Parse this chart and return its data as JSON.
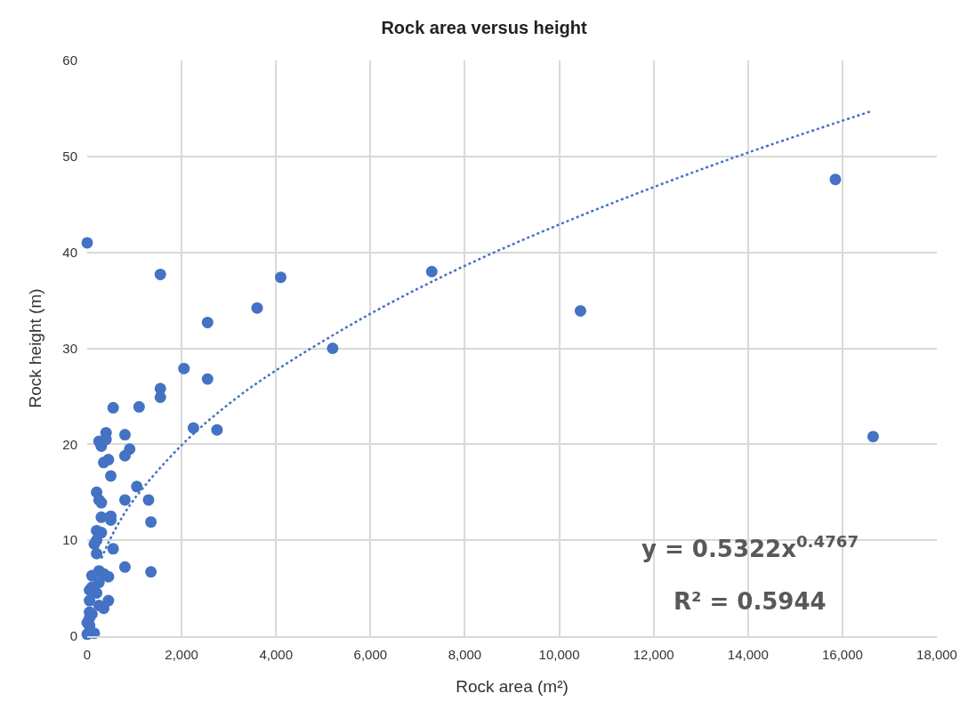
{
  "chart_data": {
    "type": "scatter",
    "title": "Rock area versus height",
    "xlabel": "Rock area (m²)",
    "ylabel": "Rock height (m)",
    "xlim": [
      0,
      18000
    ],
    "ylim": [
      0,
      60
    ],
    "xticks": [
      0,
      {
        "value": 2000,
        "label": "2,000"
      },
      {
        "value": 4000,
        "label": "4,000"
      },
      {
        "value": 6000,
        "label": "6,000"
      },
      {
        "value": 8000,
        "label": "8,000"
      },
      {
        "value": 10000,
        "label": "10,000"
      },
      {
        "value": 12000,
        "label": "12,000"
      },
      {
        "value": 14000,
        "label": "14,000"
      },
      {
        "value": 16000,
        "label": "16,000"
      },
      {
        "value": 18000,
        "label": "18,000"
      }
    ],
    "yticks": [
      0,
      10,
      20,
      30,
      40,
      50,
      60
    ],
    "grid": true,
    "marker": "circle",
    "annotations": [
      "y = 0.5322x$^{0.4767}$",
      "R² = 0.5944"
    ],
    "series": [
      {
        "color": "#4472c4",
        "x": [
          0,
          1550,
          3600,
          4100,
          2550,
          7300,
          10450,
          15850,
          16650,
          5200,
          2050,
          2550,
          1550,
          1550,
          550,
          1100,
          2250,
          2750,
          400,
          800,
          250,
          400,
          300,
          900,
          800,
          450,
          350,
          500,
          1050,
          200,
          250,
          300,
          800,
          1300,
          1350,
          300,
          500,
          500,
          200,
          300,
          200,
          150,
          200,
          550,
          800,
          1350,
          100,
          250,
          350,
          450,
          250,
          50,
          200,
          50,
          450,
          350,
          50,
          50,
          50,
          150,
          0,
          100,
          250,
          0,
          100
        ],
        "values": [
          41.0,
          37.7,
          34.2,
          37.4,
          32.7,
          38.0,
          33.9,
          47.6,
          20.8,
          30.0,
          27.9,
          26.8,
          25.8,
          24.9,
          23.8,
          23.9,
          21.7,
          21.5,
          21.2,
          21.0,
          20.3,
          20.5,
          19.8,
          19.5,
          18.8,
          18.4,
          18.1,
          16.7,
          15.6,
          15.0,
          14.2,
          13.9,
          14.2,
          14.2,
          11.9,
          12.4,
          12.5,
          12.1,
          11.0,
          10.8,
          10.0,
          9.6,
          8.6,
          9.1,
          7.2,
          6.7,
          6.3,
          6.8,
          6.5,
          6.2,
          5.6,
          4.8,
          4.5,
          3.7,
          3.7,
          2.9,
          2.5,
          1.9,
          1.1,
          0.3,
          0.2,
          5.1,
          3.2,
          1.4,
          2.3
        ]
      },
      {
        "type": "line",
        "marker": "none",
        "line_style": "dotted",
        "color": "#4472c4",
        "x": [
          300,
          600,
          1000,
          2000,
          3000,
          4000,
          6000,
          8000,
          10000,
          12000,
          14000,
          16600
        ],
        "values": [
          8.1,
          11.2,
          14.3,
          19.9,
          24.2,
          27.7,
          33.6,
          38.6,
          42.9,
          46.8,
          50.4,
          54.7
        ]
      }
    ]
  }
}
